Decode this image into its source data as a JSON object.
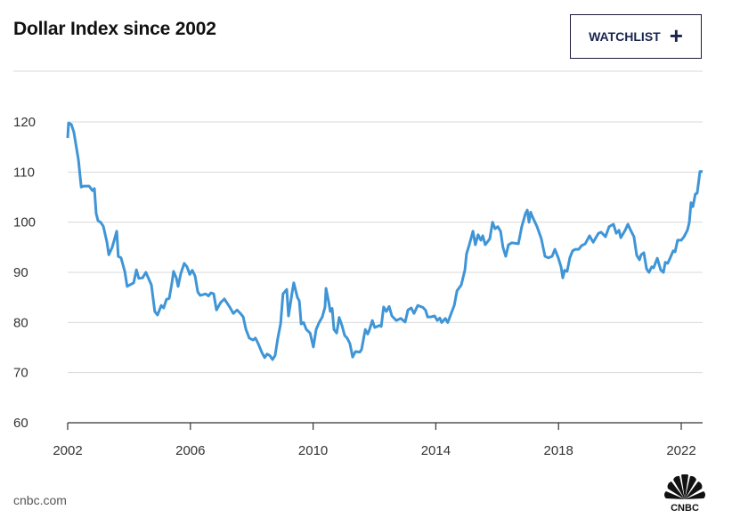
{
  "header": {
    "title": "Dollar Index since 2002",
    "watchlist_label": "WATCHLIST",
    "watchlist_icon": "plus-icon"
  },
  "footer": {
    "source": "cnbc.com",
    "logo_text": "CNBC"
  },
  "colors": {
    "line": "#3f95d6",
    "grid": "#d9d9d9",
    "button_text": "#1a2550"
  },
  "chart_data": {
    "type": "line",
    "title": "Dollar Index since 2002",
    "xlabel": "",
    "ylabel": "",
    "xlim": [
      2002,
      2022.7
    ],
    "ylim": [
      60,
      120
    ],
    "grid": true,
    "x_ticks": [
      2002,
      2006,
      2010,
      2014,
      2018,
      2022
    ],
    "x_tick_labels": [
      "2002",
      "2006",
      "2010",
      "2014",
      "2018",
      "2022"
    ],
    "y_ticks": [
      60,
      70,
      80,
      90,
      100,
      110,
      120
    ],
    "y_tick_labels": [
      "60",
      "70",
      "80",
      "90",
      "100",
      "110",
      "120"
    ],
    "series": [
      {
        "name": "Dollar Index",
        "points": [
          [
            2002.0,
            116.8
          ],
          [
            2002.03,
            119.8
          ],
          [
            2002.12,
            119.5
          ],
          [
            2002.2,
            118.0
          ],
          [
            2002.35,
            112.4
          ],
          [
            2002.44,
            107.0
          ],
          [
            2002.52,
            107.2
          ],
          [
            2002.7,
            107.2
          ],
          [
            2002.81,
            106.3
          ],
          [
            2002.87,
            106.7
          ],
          [
            2002.93,
            101.7
          ],
          [
            2002.99,
            100.3
          ],
          [
            2003.07,
            100.0
          ],
          [
            2003.16,
            99.2
          ],
          [
            2003.28,
            96.0
          ],
          [
            2003.34,
            93.5
          ],
          [
            2003.45,
            95.0
          ],
          [
            2003.6,
            98.2
          ],
          [
            2003.65,
            93.2
          ],
          [
            2003.74,
            92.9
          ],
          [
            2003.86,
            90.2
          ],
          [
            2003.94,
            87.2
          ],
          [
            2004.03,
            87.5
          ],
          [
            2004.15,
            87.9
          ],
          [
            2004.24,
            90.5
          ],
          [
            2004.32,
            88.8
          ],
          [
            2004.44,
            88.9
          ],
          [
            2004.55,
            90.0
          ],
          [
            2004.73,
            87.5
          ],
          [
            2004.84,
            82.2
          ],
          [
            2004.93,
            81.5
          ],
          [
            2005.05,
            83.4
          ],
          [
            2005.13,
            82.9
          ],
          [
            2005.22,
            84.6
          ],
          [
            2005.31,
            84.8
          ],
          [
            2005.4,
            87.9
          ],
          [
            2005.45,
            90.2
          ],
          [
            2005.54,
            88.9
          ],
          [
            2005.6,
            87.2
          ],
          [
            2005.69,
            89.8
          ],
          [
            2005.8,
            91.8
          ],
          [
            2005.89,
            91.1
          ],
          [
            2005.98,
            89.6
          ],
          [
            2006.06,
            90.4
          ],
          [
            2006.15,
            89.3
          ],
          [
            2006.24,
            86.1
          ],
          [
            2006.32,
            85.4
          ],
          [
            2006.5,
            85.7
          ],
          [
            2006.59,
            85.3
          ],
          [
            2006.67,
            85.9
          ],
          [
            2006.76,
            85.7
          ],
          [
            2006.85,
            82.5
          ],
          [
            2006.99,
            84.0
          ],
          [
            2007.11,
            84.7
          ],
          [
            2007.28,
            83.1
          ],
          [
            2007.4,
            81.8
          ],
          [
            2007.52,
            82.5
          ],
          [
            2007.63,
            81.8
          ],
          [
            2007.72,
            81.1
          ],
          [
            2007.81,
            78.6
          ],
          [
            2007.92,
            76.9
          ],
          [
            2008.04,
            76.5
          ],
          [
            2008.12,
            76.9
          ],
          [
            2008.21,
            75.8
          ],
          [
            2008.33,
            74.0
          ],
          [
            2008.42,
            73.0
          ],
          [
            2008.5,
            73.7
          ],
          [
            2008.59,
            73.4
          ],
          [
            2008.68,
            72.6
          ],
          [
            2008.76,
            73.4
          ],
          [
            2008.85,
            76.9
          ],
          [
            2008.94,
            79.7
          ],
          [
            2009.02,
            85.7
          ],
          [
            2009.14,
            86.6
          ],
          [
            2009.2,
            81.3
          ],
          [
            2009.31,
            85.7
          ],
          [
            2009.37,
            87.9
          ],
          [
            2009.49,
            85.0
          ],
          [
            2009.55,
            84.3
          ],
          [
            2009.61,
            79.7
          ],
          [
            2009.69,
            80.0
          ],
          [
            2009.78,
            78.6
          ],
          [
            2009.9,
            77.9
          ],
          [
            2010.01,
            75.1
          ],
          [
            2010.1,
            78.6
          ],
          [
            2010.19,
            79.9
          ],
          [
            2010.3,
            81.1
          ],
          [
            2010.39,
            83.1
          ],
          [
            2010.42,
            86.8
          ],
          [
            2010.51,
            84.0
          ],
          [
            2010.56,
            82.2
          ],
          [
            2010.62,
            82.8
          ],
          [
            2010.68,
            78.6
          ],
          [
            2010.77,
            77.9
          ],
          [
            2010.85,
            81.0
          ],
          [
            2010.94,
            79.4
          ],
          [
            2011.03,
            77.4
          ],
          [
            2011.11,
            76.9
          ],
          [
            2011.2,
            75.8
          ],
          [
            2011.29,
            73.1
          ],
          [
            2011.38,
            74.2
          ],
          [
            2011.52,
            74.1
          ],
          [
            2011.58,
            74.6
          ],
          [
            2011.7,
            78.6
          ],
          [
            2011.78,
            77.7
          ],
          [
            2011.84,
            78.6
          ],
          [
            2011.93,
            80.4
          ],
          [
            2012.01,
            79.0
          ],
          [
            2012.16,
            79.4
          ],
          [
            2012.22,
            79.2
          ],
          [
            2012.3,
            83.1
          ],
          [
            2012.39,
            82.2
          ],
          [
            2012.48,
            83.2
          ],
          [
            2012.57,
            81.3
          ],
          [
            2012.71,
            80.4
          ],
          [
            2012.86,
            80.8
          ],
          [
            2013.0,
            80.1
          ],
          [
            2013.09,
            82.5
          ],
          [
            2013.2,
            82.9
          ],
          [
            2013.29,
            81.8
          ],
          [
            2013.41,
            83.4
          ],
          [
            2013.58,
            83.0
          ],
          [
            2013.67,
            82.4
          ],
          [
            2013.73,
            81.1
          ],
          [
            2013.84,
            81.1
          ],
          [
            2013.96,
            81.3
          ],
          [
            2014.05,
            80.4
          ],
          [
            2014.13,
            80.9
          ],
          [
            2014.19,
            80.0
          ],
          [
            2014.31,
            80.8
          ],
          [
            2014.39,
            80.0
          ],
          [
            2014.6,
            83.4
          ],
          [
            2014.69,
            86.3
          ],
          [
            2014.83,
            87.5
          ],
          [
            2014.95,
            90.5
          ],
          [
            2015.0,
            93.7
          ],
          [
            2015.09,
            95.5
          ],
          [
            2015.21,
            98.2
          ],
          [
            2015.29,
            95.5
          ],
          [
            2015.38,
            97.5
          ],
          [
            2015.47,
            96.4
          ],
          [
            2015.53,
            97.3
          ],
          [
            2015.61,
            95.5
          ],
          [
            2015.76,
            96.7
          ],
          [
            2015.85,
            100.0
          ],
          [
            2015.93,
            98.7
          ],
          [
            2016.02,
            99.1
          ],
          [
            2016.11,
            98.2
          ],
          [
            2016.19,
            95.0
          ],
          [
            2016.28,
            93.2
          ],
          [
            2016.37,
            95.5
          ],
          [
            2016.48,
            95.9
          ],
          [
            2016.69,
            95.7
          ],
          [
            2016.8,
            99.1
          ],
          [
            2016.92,
            101.7
          ],
          [
            2016.98,
            102.4
          ],
          [
            2017.04,
            100.0
          ],
          [
            2017.09,
            102.0
          ],
          [
            2017.15,
            101.1
          ],
          [
            2017.3,
            99.1
          ],
          [
            2017.44,
            96.7
          ],
          [
            2017.56,
            93.2
          ],
          [
            2017.67,
            92.9
          ],
          [
            2017.79,
            93.2
          ],
          [
            2017.88,
            94.6
          ],
          [
            2017.99,
            92.9
          ],
          [
            2018.08,
            91.1
          ],
          [
            2018.14,
            88.9
          ],
          [
            2018.2,
            90.4
          ],
          [
            2018.28,
            90.2
          ],
          [
            2018.37,
            92.9
          ],
          [
            2018.46,
            94.3
          ],
          [
            2018.55,
            94.6
          ],
          [
            2018.66,
            94.6
          ],
          [
            2018.75,
            95.3
          ],
          [
            2018.87,
            95.7
          ],
          [
            2019.01,
            97.3
          ],
          [
            2019.13,
            96.0
          ],
          [
            2019.3,
            97.8
          ],
          [
            2019.39,
            98.0
          ],
          [
            2019.53,
            97.1
          ],
          [
            2019.65,
            99.1
          ],
          [
            2019.79,
            99.6
          ],
          [
            2019.88,
            97.8
          ],
          [
            2019.97,
            98.4
          ],
          [
            2020.03,
            96.9
          ],
          [
            2020.17,
            98.4
          ],
          [
            2020.26,
            99.6
          ],
          [
            2020.35,
            98.4
          ],
          [
            2020.46,
            97.1
          ],
          [
            2020.55,
            93.4
          ],
          [
            2020.64,
            92.5
          ],
          [
            2020.69,
            93.5
          ],
          [
            2020.78,
            93.9
          ],
          [
            2020.87,
            90.7
          ],
          [
            2020.95,
            90.0
          ],
          [
            2021.04,
            91.1
          ],
          [
            2021.1,
            90.9
          ],
          [
            2021.22,
            92.8
          ],
          [
            2021.33,
            90.5
          ],
          [
            2021.42,
            90.0
          ],
          [
            2021.48,
            92.0
          ],
          [
            2021.56,
            91.8
          ],
          [
            2021.62,
            92.6
          ],
          [
            2021.74,
            94.3
          ],
          [
            2021.8,
            94.1
          ],
          [
            2021.88,
            96.4
          ],
          [
            2022.0,
            96.4
          ],
          [
            2022.09,
            97.1
          ],
          [
            2022.2,
            98.4
          ],
          [
            2022.26,
            99.9
          ],
          [
            2022.32,
            103.9
          ],
          [
            2022.38,
            103.1
          ],
          [
            2022.46,
            105.6
          ],
          [
            2022.52,
            105.8
          ],
          [
            2022.61,
            110.1
          ],
          [
            2022.7,
            110.1
          ]
        ]
      }
    ]
  }
}
